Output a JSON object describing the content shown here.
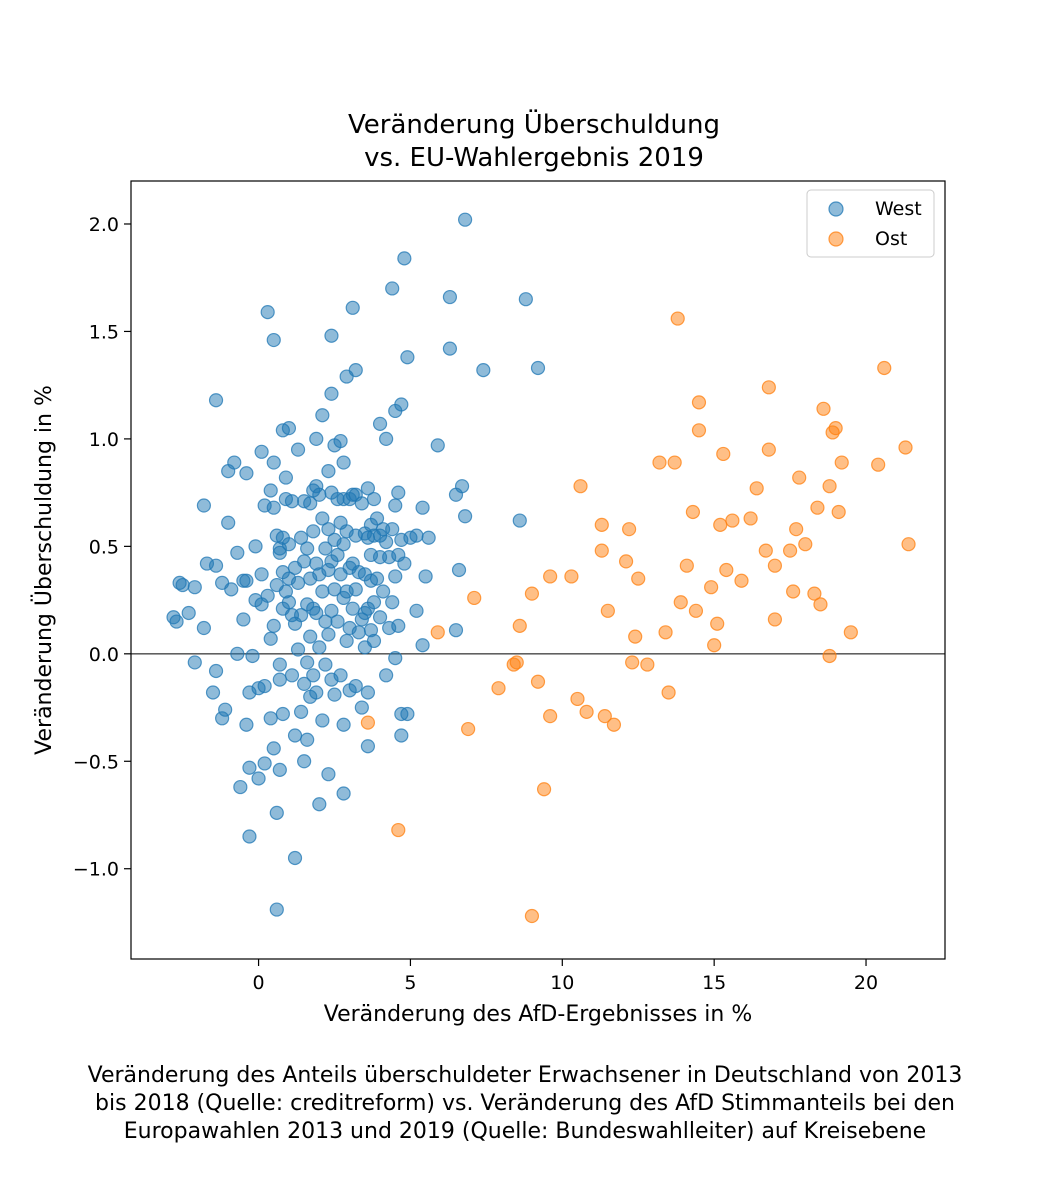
{
  "chart_data": {
    "type": "scatter",
    "title_lines": [
      "Veränderung Überschuldung",
      "vs. EU-Wahlergebnis 2019"
    ],
    "xlabel": "Veränderung des AfD-Ergebnisses in %",
    "ylabel": "Veränderung Überschuldung in %",
    "xlim": [
      -4.2,
      22.6
    ],
    "ylim": [
      -1.42,
      2.2
    ],
    "xticks": [
      0,
      5,
      10,
      15,
      20
    ],
    "yticks": [
      -1.0,
      -0.5,
      0.0,
      0.5,
      1.0,
      1.5,
      2.0
    ],
    "xtick_labels": [
      "0",
      "5",
      "10",
      "15",
      "20"
    ],
    "ytick_labels": [
      "−1.0",
      "−0.5",
      "0.0",
      "0.5",
      "1.0",
      "1.5",
      "2.0"
    ],
    "reference_line_y": 0,
    "grid": false,
    "legend": "top-right",
    "series": [
      {
        "name": "West",
        "color": "#1f77b4",
        "points": [
          [
            -2.8,
            0.17
          ],
          [
            -2.7,
            0.15
          ],
          [
            -2.6,
            0.33
          ],
          [
            -2.5,
            0.32
          ],
          [
            -2.3,
            0.19
          ],
          [
            -2.1,
            0.31
          ],
          [
            -2.1,
            -0.04
          ],
          [
            -1.8,
            0.69
          ],
          [
            -1.8,
            0.12
          ],
          [
            -1.7,
            0.42
          ],
          [
            -1.5,
            -0.18
          ],
          [
            -1.4,
            0.41
          ],
          [
            -1.4,
            1.18
          ],
          [
            -1.4,
            -0.08
          ],
          [
            -1.2,
            -0.3
          ],
          [
            -1.2,
            0.33
          ],
          [
            -1.1,
            -0.26
          ],
          [
            -1.0,
            0.85
          ],
          [
            -1.0,
            0.61
          ],
          [
            -0.9,
            0.3
          ],
          [
            -0.8,
            0.89
          ],
          [
            -0.7,
            0.47
          ],
          [
            -0.7,
            0.0
          ],
          [
            -0.6,
            -0.62
          ],
          [
            -0.5,
            0.34
          ],
          [
            -0.5,
            0.16
          ],
          [
            -0.4,
            0.84
          ],
          [
            -0.4,
            0.34
          ],
          [
            -0.4,
            -0.33
          ],
          [
            -0.3,
            -0.53
          ],
          [
            -0.3,
            -0.85
          ],
          [
            -0.3,
            -0.18
          ],
          [
            -0.2,
            -0.01
          ],
          [
            -0.1,
            0.5
          ],
          [
            -0.1,
            0.25
          ],
          [
            0.0,
            -0.16
          ],
          [
            0.0,
            -0.58
          ],
          [
            0.1,
            0.94
          ],
          [
            0.1,
            0.37
          ],
          [
            0.1,
            0.23
          ],
          [
            0.2,
            0.69
          ],
          [
            0.2,
            -0.51
          ],
          [
            0.2,
            -0.15
          ],
          [
            0.3,
            1.59
          ],
          [
            0.3,
            0.27
          ],
          [
            0.4,
            0.76
          ],
          [
            0.4,
            0.07
          ],
          [
            0.4,
            -0.3
          ],
          [
            0.5,
            1.46
          ],
          [
            0.5,
            0.89
          ],
          [
            0.5,
            0.68
          ],
          [
            0.5,
            0.13
          ],
          [
            0.5,
            -0.44
          ],
          [
            0.6,
            0.55
          ],
          [
            0.6,
            0.32
          ],
          [
            0.6,
            -0.74
          ],
          [
            0.6,
            -1.19
          ],
          [
            0.7,
            0.49
          ],
          [
            0.7,
            0.47
          ],
          [
            0.7,
            -0.05
          ],
          [
            0.7,
            -0.12
          ],
          [
            0.7,
            -0.54
          ],
          [
            0.8,
            1.04
          ],
          [
            0.8,
            0.54
          ],
          [
            0.8,
            0.38
          ],
          [
            0.8,
            0.21
          ],
          [
            0.8,
            -0.28
          ],
          [
            0.9,
            0.82
          ],
          [
            0.9,
            0.72
          ],
          [
            0.9,
            0.29
          ],
          [
            1.0,
            1.05
          ],
          [
            1.0,
            0.51
          ],
          [
            1.0,
            0.35
          ],
          [
            1.0,
            0.24
          ],
          [
            1.1,
            0.71
          ],
          [
            1.1,
            0.18
          ],
          [
            1.1,
            -0.1
          ],
          [
            1.2,
            0.4
          ],
          [
            1.2,
            0.14
          ],
          [
            1.2,
            -0.38
          ],
          [
            1.2,
            -0.95
          ],
          [
            1.3,
            0.95
          ],
          [
            1.3,
            0.33
          ],
          [
            1.3,
            0.02
          ],
          [
            1.4,
            0.54
          ],
          [
            1.4,
            0.18
          ],
          [
            1.4,
            -0.27
          ],
          [
            1.5,
            0.71
          ],
          [
            1.5,
            0.43
          ],
          [
            1.5,
            -0.14
          ],
          [
            1.5,
            -0.5
          ],
          [
            1.6,
            0.49
          ],
          [
            1.6,
            0.23
          ],
          [
            1.6,
            -0.04
          ],
          [
            1.6,
            -0.4
          ],
          [
            1.7,
            0.7
          ],
          [
            1.7,
            0.35
          ],
          [
            1.7,
            0.08
          ],
          [
            1.7,
            -0.2
          ],
          [
            1.8,
            0.76
          ],
          [
            1.8,
            0.57
          ],
          [
            1.8,
            0.21
          ],
          [
            1.8,
            -0.1
          ],
          [
            1.9,
            1.0
          ],
          [
            1.9,
            0.78
          ],
          [
            1.9,
            0.42
          ],
          [
            1.9,
            0.19
          ],
          [
            1.9,
            -0.18
          ],
          [
            2.0,
            0.74
          ],
          [
            2.0,
            0.37
          ],
          [
            2.0,
            0.03
          ],
          [
            2.0,
            -0.7
          ],
          [
            2.1,
            1.11
          ],
          [
            2.1,
            0.63
          ],
          [
            2.1,
            0.29
          ],
          [
            2.1,
            -0.31
          ],
          [
            2.2,
            0.49
          ],
          [
            2.2,
            0.15
          ],
          [
            2.2,
            -0.05
          ],
          [
            2.3,
            0.85
          ],
          [
            2.3,
            0.58
          ],
          [
            2.3,
            0.39
          ],
          [
            2.3,
            0.09
          ],
          [
            2.3,
            -0.56
          ],
          [
            2.4,
            1.48
          ],
          [
            2.4,
            1.21
          ],
          [
            2.4,
            0.75
          ],
          [
            2.4,
            0.43
          ],
          [
            2.4,
            0.2
          ],
          [
            2.4,
            -0.12
          ],
          [
            2.5,
            0.97
          ],
          [
            2.5,
            0.53
          ],
          [
            2.5,
            0.3
          ],
          [
            2.5,
            -0.19
          ],
          [
            2.6,
            0.72
          ],
          [
            2.6,
            0.46
          ],
          [
            2.6,
            0.15
          ],
          [
            2.7,
            0.99
          ],
          [
            2.7,
            0.61
          ],
          [
            2.7,
            0.37
          ],
          [
            2.7,
            -0.1
          ],
          [
            2.8,
            0.89
          ],
          [
            2.8,
            0.72
          ],
          [
            2.8,
            0.51
          ],
          [
            2.8,
            0.26
          ],
          [
            2.8,
            -0.33
          ],
          [
            2.8,
            -0.65
          ],
          [
            2.9,
            1.29
          ],
          [
            2.9,
            0.57
          ],
          [
            2.9,
            0.29
          ],
          [
            2.9,
            0.06
          ],
          [
            3.0,
            0.72
          ],
          [
            3.0,
            0.4
          ],
          [
            3.0,
            0.12
          ],
          [
            3.0,
            -0.17
          ],
          [
            3.1,
            1.61
          ],
          [
            3.1,
            0.74
          ],
          [
            3.1,
            0.42
          ],
          [
            3.1,
            0.21
          ],
          [
            3.2,
            1.32
          ],
          [
            3.2,
            0.74
          ],
          [
            3.2,
            0.55
          ],
          [
            3.2,
            0.3
          ],
          [
            3.2,
            -0.15
          ],
          [
            3.3,
            0.38
          ],
          [
            3.3,
            0.1
          ],
          [
            3.4,
            0.7
          ],
          [
            3.4,
            0.16
          ],
          [
            3.4,
            -0.25
          ],
          [
            3.5,
            0.56
          ],
          [
            3.5,
            0.37
          ],
          [
            3.5,
            0.19
          ],
          [
            3.5,
            0.03
          ],
          [
            3.6,
            0.77
          ],
          [
            3.6,
            0.54
          ],
          [
            3.6,
            0.21
          ],
          [
            3.6,
            -0.18
          ],
          [
            3.6,
            -0.43
          ],
          [
            3.7,
            0.6
          ],
          [
            3.7,
            0.46
          ],
          [
            3.7,
            0.34
          ],
          [
            3.7,
            0.11
          ],
          [
            3.8,
            0.72
          ],
          [
            3.8,
            0.55
          ],
          [
            3.8,
            0.24
          ],
          [
            3.8,
            0.06
          ],
          [
            3.9,
            0.63
          ],
          [
            3.9,
            0.35
          ],
          [
            4.0,
            1.07
          ],
          [
            4.0,
            0.55
          ],
          [
            4.0,
            0.45
          ],
          [
            4.0,
            0.17
          ],
          [
            4.1,
            0.58
          ],
          [
            4.1,
            0.29
          ],
          [
            4.2,
            1.0
          ],
          [
            4.2,
            0.52
          ],
          [
            4.2,
            -0.1
          ],
          [
            4.3,
            0.45
          ],
          [
            4.3,
            0.12
          ],
          [
            4.4,
            1.7
          ],
          [
            4.4,
            0.58
          ],
          [
            4.4,
            0.24
          ],
          [
            4.5,
            1.13
          ],
          [
            4.5,
            0.69
          ],
          [
            4.5,
            0.36
          ],
          [
            4.5,
            -0.02
          ],
          [
            4.6,
            0.75
          ],
          [
            4.6,
            0.46
          ],
          [
            4.6,
            0.13
          ],
          [
            4.7,
            1.16
          ],
          [
            4.7,
            0.53
          ],
          [
            4.7,
            -0.28
          ],
          [
            4.7,
            -0.38
          ],
          [
            4.8,
            1.84
          ],
          [
            4.8,
            0.42
          ],
          [
            4.9,
            1.38
          ],
          [
            4.9,
            -0.28
          ],
          [
            5.0,
            0.54
          ],
          [
            5.2,
            0.55
          ],
          [
            5.2,
            0.2
          ],
          [
            5.4,
            0.68
          ],
          [
            5.4,
            0.04
          ],
          [
            5.5,
            0.36
          ],
          [
            5.6,
            0.54
          ],
          [
            5.9,
            0.97
          ],
          [
            6.3,
            1.42
          ],
          [
            6.3,
            1.66
          ],
          [
            6.5,
            0.74
          ],
          [
            6.5,
            0.11
          ],
          [
            6.6,
            0.39
          ],
          [
            6.7,
            0.78
          ],
          [
            6.8,
            2.02
          ],
          [
            6.8,
            0.64
          ],
          [
            7.4,
            1.32
          ],
          [
            8.6,
            0.62
          ],
          [
            8.8,
            1.65
          ],
          [
            9.2,
            1.33
          ]
        ]
      },
      {
        "name": "Ost",
        "color": "#ff7f0e",
        "points": [
          [
            3.6,
            -0.32
          ],
          [
            4.6,
            -0.82
          ],
          [
            5.9,
            0.1
          ],
          [
            6.9,
            -0.35
          ],
          [
            7.1,
            0.26
          ],
          [
            7.9,
            -0.16
          ],
          [
            8.4,
            -0.05
          ],
          [
            8.5,
            -0.04
          ],
          [
            8.6,
            0.13
          ],
          [
            9.0,
            0.28
          ],
          [
            9.0,
            -1.22
          ],
          [
            9.2,
            -0.13
          ],
          [
            9.4,
            -0.63
          ],
          [
            9.6,
            -0.29
          ],
          [
            9.6,
            0.36
          ],
          [
            10.3,
            0.36
          ],
          [
            10.5,
            -0.21
          ],
          [
            10.6,
            0.78
          ],
          [
            10.8,
            -0.27
          ],
          [
            11.3,
            0.6
          ],
          [
            11.3,
            0.48
          ],
          [
            11.4,
            -0.29
          ],
          [
            11.5,
            0.2
          ],
          [
            11.7,
            -0.33
          ],
          [
            12.1,
            0.43
          ],
          [
            12.2,
            0.58
          ],
          [
            12.3,
            -0.04
          ],
          [
            12.4,
            0.08
          ],
          [
            12.5,
            0.35
          ],
          [
            12.8,
            -0.05
          ],
          [
            13.2,
            0.89
          ],
          [
            13.4,
            0.1
          ],
          [
            13.5,
            -0.18
          ],
          [
            13.7,
            0.89
          ],
          [
            13.8,
            1.56
          ],
          [
            13.9,
            0.24
          ],
          [
            14.1,
            0.41
          ],
          [
            14.3,
            0.66
          ],
          [
            14.4,
            0.2
          ],
          [
            14.5,
            1.17
          ],
          [
            14.5,
            1.04
          ],
          [
            14.9,
            0.31
          ],
          [
            15.0,
            0.04
          ],
          [
            15.1,
            0.14
          ],
          [
            15.2,
            0.6
          ],
          [
            15.3,
            0.93
          ],
          [
            15.4,
            0.39
          ],
          [
            15.6,
            0.62
          ],
          [
            15.9,
            0.34
          ],
          [
            16.2,
            0.63
          ],
          [
            16.4,
            0.77
          ],
          [
            16.7,
            0.48
          ],
          [
            16.8,
            1.24
          ],
          [
            16.8,
            0.95
          ],
          [
            17.0,
            0.41
          ],
          [
            17.0,
            0.16
          ],
          [
            17.5,
            0.48
          ],
          [
            17.6,
            0.29
          ],
          [
            17.7,
            0.58
          ],
          [
            17.8,
            0.82
          ],
          [
            18.0,
            0.51
          ],
          [
            18.3,
            0.28
          ],
          [
            18.4,
            0.68
          ],
          [
            18.5,
            0.23
          ],
          [
            18.6,
            1.14
          ],
          [
            18.8,
            0.78
          ],
          [
            18.8,
            -0.01
          ],
          [
            18.9,
            1.03
          ],
          [
            19.0,
            1.05
          ],
          [
            19.1,
            0.66
          ],
          [
            19.2,
            0.89
          ],
          [
            19.5,
            0.1
          ],
          [
            20.4,
            0.88
          ],
          [
            20.6,
            1.33
          ],
          [
            21.3,
            0.96
          ],
          [
            21.4,
            0.51
          ]
        ]
      }
    ]
  },
  "caption_lines": [
    "Veränderung des Anteils überschuldeter Erwachsener in Deutschland von 2013",
    "bis 2018 (Quelle: creditreform) vs. Veränderung des AfD Stimmanteils bei den",
    "Europawahlen 2013 und 2019 (Quelle: Bundeswahlleiter) auf Kreisebene"
  ]
}
